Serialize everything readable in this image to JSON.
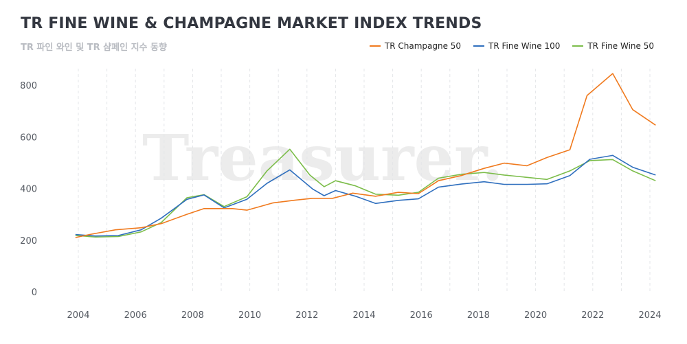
{
  "header": {
    "title": "TR FINE WINE & CHAMPAGNE MARKET INDEX TRENDS",
    "subtitle": "TR 파인 와인 및 TR 샴페인 지수 동향"
  },
  "watermark": "Treasurer.",
  "chart_data": {
    "type": "line",
    "title": "TR FINE WINE & CHAMPAGNE MARKET INDEX TRENDS",
    "subtitle": "TR 파인 와인 및 TR 샴페인 지수 동향",
    "xlabel": "",
    "ylabel": "",
    "xlim": [
      2003.8,
      2024.3
    ],
    "ylim": [
      0,
      850
    ],
    "x_ticks": [
      2004,
      2006,
      2008,
      2010,
      2012,
      2014,
      2016,
      2018,
      2020,
      2022,
      2024
    ],
    "y_ticks": [
      0,
      200,
      400,
      600,
      800
    ],
    "grid": "vertical dashed",
    "legend_position": "top-right",
    "series": [
      {
        "name": "TR Champagne 50",
        "color": "#f07a1e",
        "points": [
          [
            2003.9,
            210
          ],
          [
            2004.4,
            222
          ],
          [
            2005.3,
            240
          ],
          [
            2006.2,
            248
          ],
          [
            2006.9,
            264
          ],
          [
            2007.8,
            300
          ],
          [
            2008.4,
            322
          ],
          [
            2009.4,
            322
          ],
          [
            2009.9,
            316
          ],
          [
            2010.8,
            344
          ],
          [
            2011.6,
            355
          ],
          [
            2012.2,
            362
          ],
          [
            2012.9,
            362
          ],
          [
            2013.6,
            382
          ],
          [
            2014.4,
            370
          ],
          [
            2015.2,
            385
          ],
          [
            2015.9,
            380
          ],
          [
            2016.6,
            430
          ],
          [
            2017.4,
            450
          ],
          [
            2018.2,
            478
          ],
          [
            2018.9,
            498
          ],
          [
            2019.7,
            488
          ],
          [
            2020.4,
            520
          ],
          [
            2021.2,
            550
          ],
          [
            2021.8,
            760
          ],
          [
            2022.7,
            845
          ],
          [
            2023.4,
            705
          ],
          [
            2024.2,
            645
          ]
        ]
      },
      {
        "name": "TR Fine Wine 100",
        "color": "#2f6fbe",
        "points": [
          [
            2003.9,
            222
          ],
          [
            2004.6,
            216
          ],
          [
            2005.4,
            218
          ],
          [
            2006.2,
            240
          ],
          [
            2006.9,
            285
          ],
          [
            2007.8,
            358
          ],
          [
            2008.4,
            375
          ],
          [
            2009.1,
            325
          ],
          [
            2009.9,
            358
          ],
          [
            2010.6,
            420
          ],
          [
            2011.4,
            472
          ],
          [
            2012.2,
            398
          ],
          [
            2012.6,
            372
          ],
          [
            2013.0,
            392
          ],
          [
            2013.7,
            370
          ],
          [
            2014.4,
            342
          ],
          [
            2015.2,
            354
          ],
          [
            2015.9,
            360
          ],
          [
            2016.6,
            405
          ],
          [
            2017.4,
            417
          ],
          [
            2018.2,
            426
          ],
          [
            2018.9,
            416
          ],
          [
            2019.7,
            416
          ],
          [
            2020.4,
            418
          ],
          [
            2021.2,
            450
          ],
          [
            2021.9,
            513
          ],
          [
            2022.7,
            528
          ],
          [
            2023.4,
            482
          ],
          [
            2024.2,
            452
          ]
        ]
      },
      {
        "name": "TR Fine Wine 50",
        "color": "#7cbd4a",
        "points": [
          [
            2003.9,
            218
          ],
          [
            2004.6,
            212
          ],
          [
            2005.4,
            214
          ],
          [
            2006.2,
            232
          ],
          [
            2006.9,
            268
          ],
          [
            2007.8,
            364
          ],
          [
            2008.4,
            376
          ],
          [
            2009.1,
            330
          ],
          [
            2009.9,
            368
          ],
          [
            2010.6,
            468
          ],
          [
            2011.4,
            552
          ],
          [
            2012.1,
            452
          ],
          [
            2012.6,
            407
          ],
          [
            2013.0,
            430
          ],
          [
            2013.7,
            410
          ],
          [
            2014.4,
            378
          ],
          [
            2015.2,
            374
          ],
          [
            2015.9,
            385
          ],
          [
            2016.6,
            440
          ],
          [
            2017.4,
            455
          ],
          [
            2018.2,
            462
          ],
          [
            2018.9,
            452
          ],
          [
            2019.7,
            443
          ],
          [
            2020.4,
            435
          ],
          [
            2021.2,
            468
          ],
          [
            2021.9,
            508
          ],
          [
            2022.7,
            512
          ],
          [
            2023.4,
            468
          ],
          [
            2024.2,
            430
          ]
        ]
      }
    ]
  }
}
